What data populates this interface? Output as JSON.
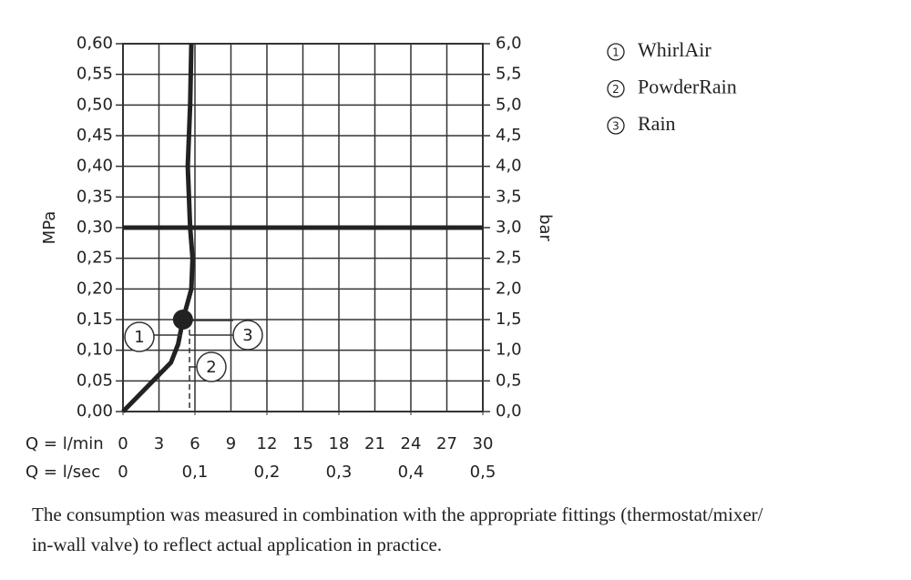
{
  "chart_data": {
    "type": "line",
    "xlabel": "Q = l/min",
    "x2label": "Q = l/sec",
    "ylabel": "MPa",
    "y2label": "bar",
    "xlim": [
      0,
      30
    ],
    "xticks": [
      0,
      3,
      6,
      9,
      12,
      15,
      18,
      21,
      24,
      27,
      30
    ],
    "x2lim": [
      0,
      0.5
    ],
    "x2ticks": [
      0,
      {
        "value": 0.1,
        "label": "0,1"
      },
      {
        "value": 0.2,
        "label": "0,2"
      },
      {
        "value": 0.3,
        "label": "0,3"
      },
      {
        "value": 0.4,
        "label": "0,4"
      },
      {
        "value": 0.5,
        "label": "0,5"
      }
    ],
    "ylim": [
      0,
      0.6
    ],
    "yticks": [
      {
        "value": 0,
        "label": "0,00"
      },
      {
        "value": 0.05,
        "label": "0,05"
      },
      {
        "value": 0.1,
        "label": "0,10"
      },
      {
        "value": 0.15,
        "label": "0,15"
      },
      {
        "value": 0.2,
        "label": "0,20"
      },
      {
        "value": 0.25,
        "label": "0,25"
      },
      {
        "value": 0.3,
        "label": "0,30"
      },
      {
        "value": 0.35,
        "label": "0,35"
      },
      {
        "value": 0.4,
        "label": "0,40"
      },
      {
        "value": 0.45,
        "label": "0,45"
      },
      {
        "value": 0.5,
        "label": "0,50"
      },
      {
        "value": 0.55,
        "label": "0,55"
      },
      {
        "value": 0.6,
        "label": "0,60"
      }
    ],
    "y2lim": [
      0,
      6
    ],
    "y2ticks": [
      {
        "value": 0,
        "label": "0,0"
      },
      {
        "value": 0.5,
        "label": "0,5"
      },
      {
        "value": 1,
        "label": "1,0"
      },
      {
        "value": 1.5,
        "label": "1,5"
      },
      {
        "value": 2,
        "label": "2,0"
      },
      {
        "value": 2.5,
        "label": "2,5"
      },
      {
        "value": 3,
        "label": "3,0"
      },
      {
        "value": 3.5,
        "label": "3,5"
      },
      {
        "value": 4,
        "label": "4,0"
      },
      {
        "value": 4.5,
        "label": "4,5"
      },
      {
        "value": 5,
        "label": "5,0"
      },
      {
        "value": 5.5,
        "label": "5,5"
      },
      {
        "value": 6,
        "label": "6,0"
      }
    ],
    "grid": true,
    "hline": 0.3,
    "series": [
      {
        "color": "#222222",
        "x": [
          0,
          2,
          4,
          4.6,
          5,
          5.7,
          5.8,
          5.6,
          5.4,
          5.6,
          5.7
        ],
        "values": [
          0,
          0.04,
          0.08,
          0.11,
          0.15,
          0.2,
          0.25,
          0.3,
          0.4,
          0.5,
          0.6
        ]
      }
    ],
    "operating_point": [
      5,
      0.15
    ],
    "legend_position": "right",
    "legend": [
      {
        "marker": "1",
        "name": "WhirlAir"
      },
      {
        "marker": "2",
        "name": "PowderRain"
      },
      {
        "marker": "3",
        "name": "Rain"
      }
    ]
  },
  "note": [
    "The consumption was measured in combination with the appropriate fittings (thermostat/mixer/",
    "in-wall valve) to reflect actual application in practice."
  ]
}
